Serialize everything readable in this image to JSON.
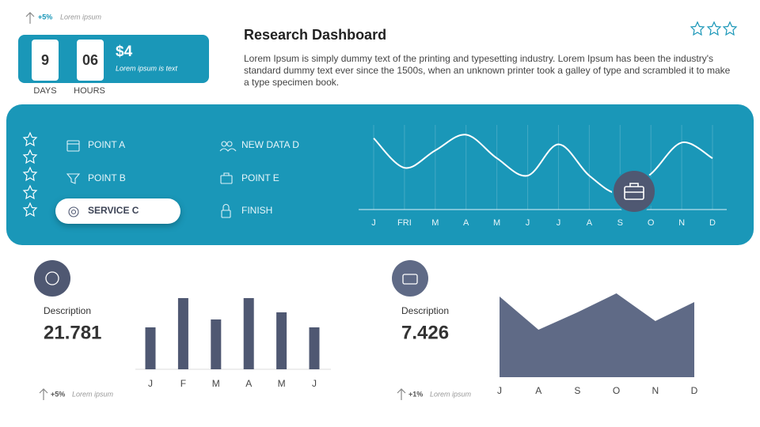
{
  "header": {
    "growth": "+5%",
    "growth_note": "Lorem ipsum",
    "days": "9",
    "days_label": "DAYS",
    "hours": "06",
    "hours_label": "HOURS",
    "price": "$4",
    "price_note": "Lorem ipsum is text",
    "title": "Research Dashboard",
    "body": "Lorem Ipsum is simply dummy text of the printing and typesetting industry. Lorem Ipsum has been the industry's standard dummy text ever since the 1500s, when an unknown printer took a galley of type and scrambled it to make a type specimen book."
  },
  "menu": {
    "items": [
      "POINT A",
      "POINT B",
      "SERVICE C",
      "NEW DATA D",
      "POINT E",
      "FINISH"
    ],
    "selected": 2
  },
  "line_chart": {
    "type": "line",
    "categories": [
      "J",
      "FRI",
      "M",
      "A",
      "M",
      "J",
      "J",
      "A",
      "S",
      "O",
      "N",
      "D"
    ],
    "values": [
      82,
      48,
      68,
      86,
      59,
      39,
      75,
      39,
      18,
      41,
      77,
      59
    ],
    "color": "#ffffff"
  },
  "bar_panel": {
    "label": "Description",
    "value": "21.781",
    "growth": "+5%",
    "note": "Lorem ipsum",
    "chart": {
      "type": "bar",
      "categories": [
        "J",
        "F",
        "M",
        "A",
        "M",
        "J"
      ],
      "values": [
        53,
        90,
        63,
        90,
        72,
        53
      ],
      "color": "#4f5872"
    }
  },
  "area_panel": {
    "label": "Description",
    "value": "7.426",
    "growth": "+1%",
    "note": "Lorem ipsum",
    "chart": {
      "type": "area",
      "categories": [
        "J",
        "A",
        "S",
        "O",
        "N",
        "D"
      ],
      "values": [
        102,
        60,
        82,
        106,
        71,
        95
      ],
      "color": "#5f6a86"
    }
  }
}
